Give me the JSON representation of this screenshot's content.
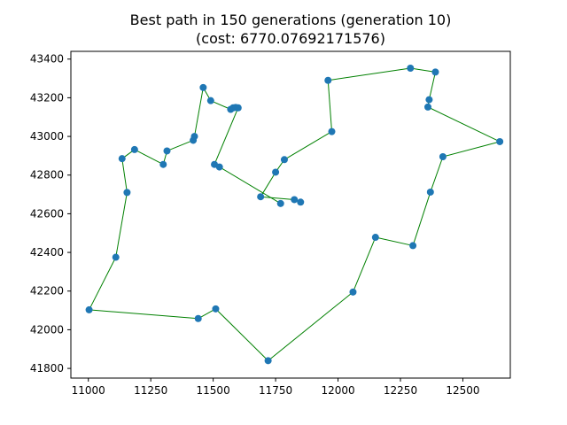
{
  "chart_data": {
    "type": "line",
    "title": "Best path in 150 generations (generation 10)",
    "subtitle": "(cost: 6770.07692171576)",
    "xlabel": "",
    "ylabel": "",
    "xlim": [
      10930,
      12690
    ],
    "ylim": [
      41750,
      43440
    ],
    "xticks": [
      11000,
      11250,
      11500,
      11750,
      12000,
      12250,
      12500
    ],
    "yticks": [
      41800,
      42000,
      42200,
      42400,
      42600,
      42800,
      43000,
      43200,
      43400
    ],
    "grid": false,
    "colors": {
      "path": "#008000",
      "point": "#1f77b4"
    },
    "series": [
      {
        "points": [
          [
            11850,
            42660
          ],
          [
            11825,
            42673
          ],
          [
            11690,
            42688
          ],
          [
            11750,
            42815
          ],
          [
            11785,
            42880
          ],
          [
            11975,
            43025
          ],
          [
            11960,
            43290
          ],
          [
            12290,
            43353
          ],
          [
            12390,
            43333
          ],
          [
            12365,
            43190
          ],
          [
            12360,
            43152
          ],
          [
            12648,
            42973
          ],
          [
            12420,
            42895
          ],
          [
            12370,
            42712
          ],
          [
            12300,
            42435
          ],
          [
            12150,
            42478
          ],
          [
            12060,
            42195
          ],
          [
            11720,
            41840
          ],
          [
            11510,
            42108
          ],
          [
            11440,
            42058
          ],
          [
            11003,
            42103
          ],
          [
            11110,
            42375
          ],
          [
            11155,
            42710
          ],
          [
            11135,
            42885
          ],
          [
            11185,
            42932
          ],
          [
            11300,
            42855
          ],
          [
            11315,
            42925
          ],
          [
            11420,
            42980
          ],
          [
            11425,
            43000
          ],
          [
            11460,
            43253
          ],
          [
            11490,
            43185
          ],
          [
            11570,
            43140
          ],
          [
            11580,
            43148
          ],
          [
            11590,
            43150
          ],
          [
            11600,
            43148
          ],
          [
            11505,
            42855
          ],
          [
            11525,
            42842
          ],
          [
            11770,
            42653
          ]
        ]
      }
    ]
  }
}
